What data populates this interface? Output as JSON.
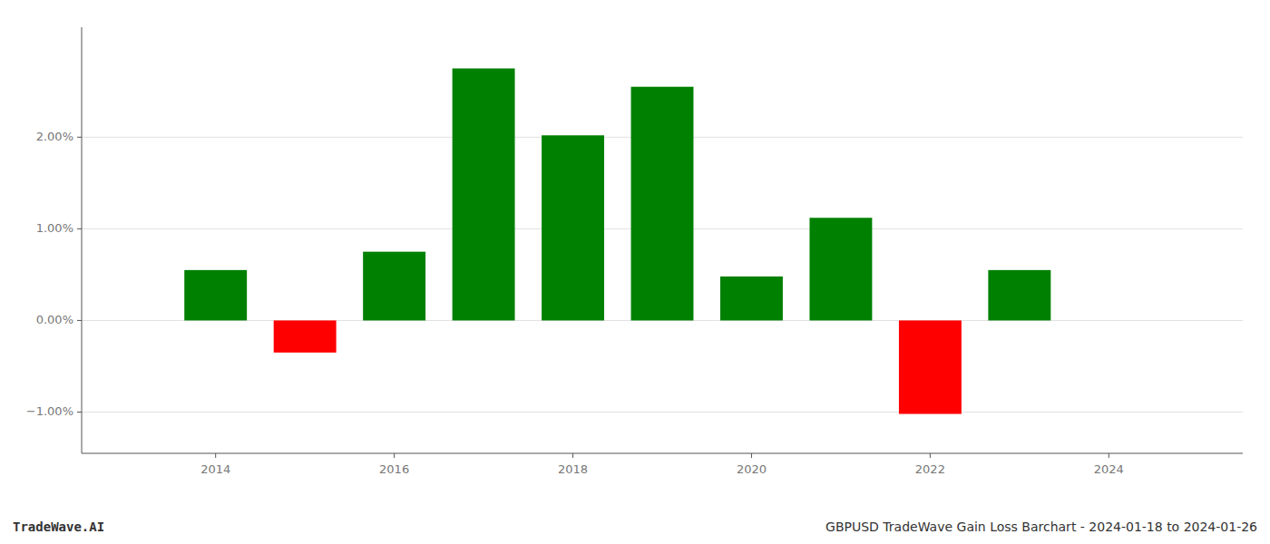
{
  "chart_data": {
    "type": "bar",
    "title": "GBPUSD TradeWave Gain Loss Barchart - 2024-01-18 to 2024-01-26",
    "annotations": [
      "TradeWave.AI"
    ],
    "x": [
      2014,
      2015,
      2016,
      2017,
      2018,
      2019,
      2020,
      2021,
      2022,
      2023
    ],
    "values": [
      0.0055,
      -0.0035,
      0.0075,
      0.0275,
      0.0202,
      0.0255,
      0.0048,
      0.0112,
      -0.0102,
      0.0055
    ],
    "colors": [
      "#008000",
      "#ff0000",
      "#008000",
      "#008000",
      "#008000",
      "#008000",
      "#008000",
      "#008000",
      "#ff0000",
      "#008000"
    ],
    "xlim": [
      2012.5,
      2025.5
    ],
    "xticks": [
      2014,
      2016,
      2018,
      2020,
      2022,
      2024
    ],
    "ylim": [
      -0.0145,
      0.032
    ],
    "yticks": [
      {
        "value": -0.01,
        "label": "−1.00%"
      },
      {
        "value": 0.0,
        "label": "0.00%"
      },
      {
        "value": 0.01,
        "label": "1.00%"
      },
      {
        "value": 0.02,
        "label": "2.00%"
      }
    ],
    "grid": true
  }
}
